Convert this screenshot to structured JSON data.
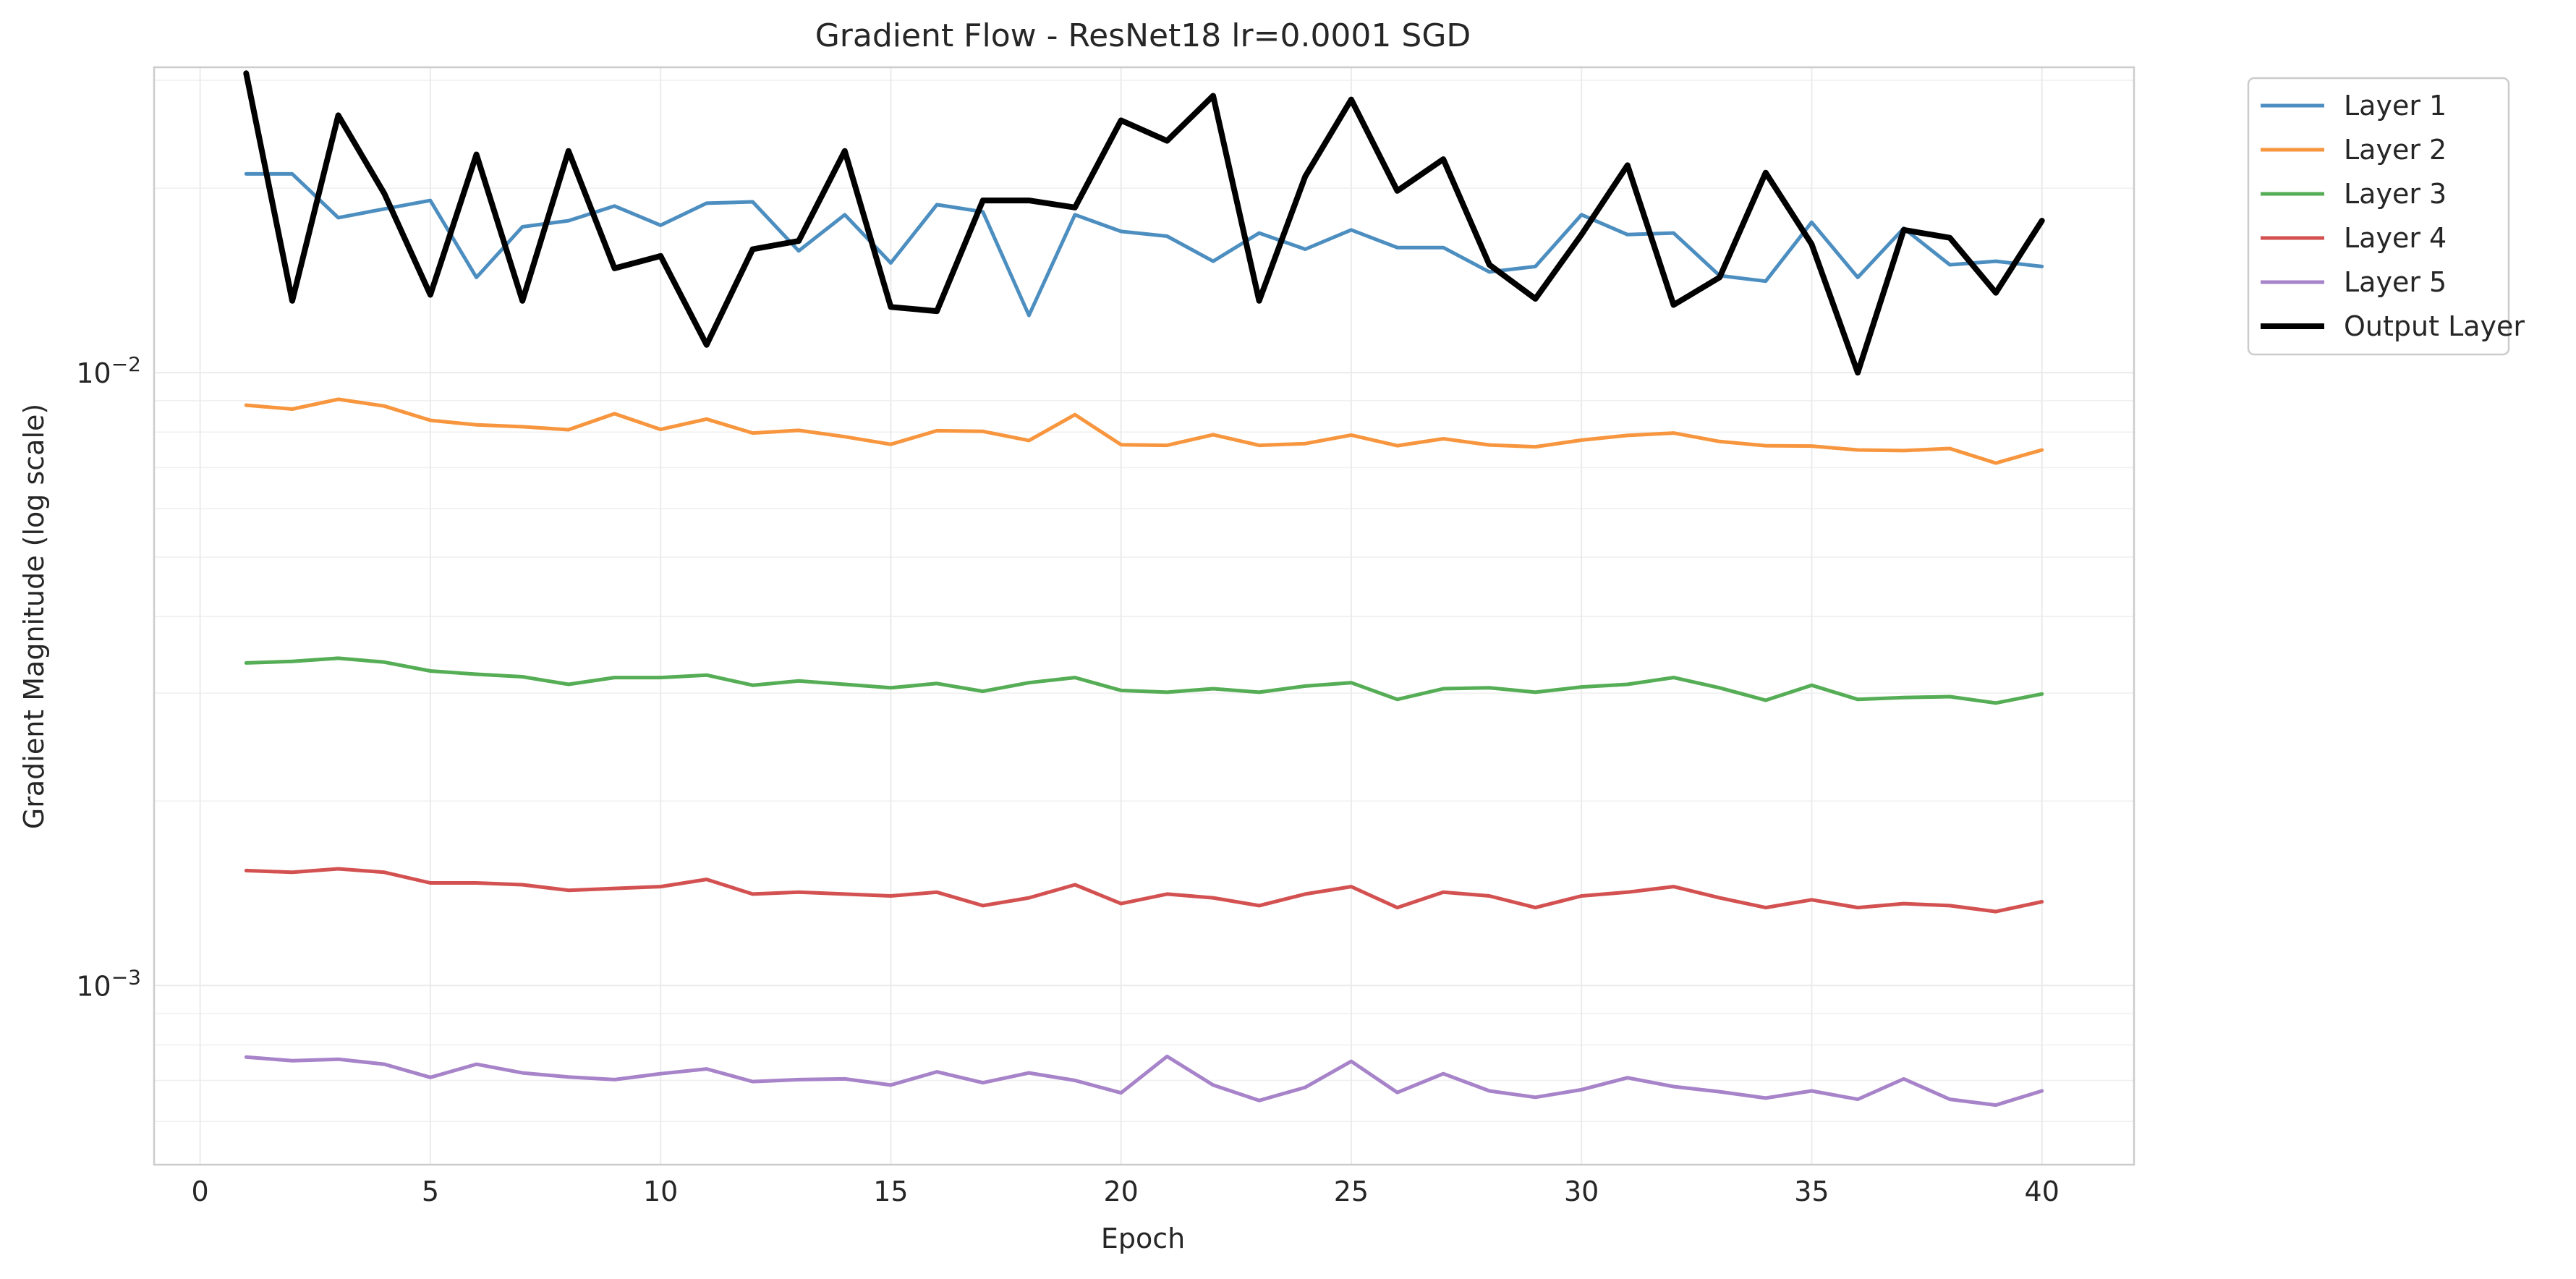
{
  "chart_data": {
    "type": "line",
    "title": "Gradient Flow - ResNet18 lr=0.0001 SGD",
    "xlabel": "Epoch",
    "ylabel": "Gradient Magnitude (log scale)",
    "y_scale": "log",
    "xlim": [
      -1,
      42
    ],
    "ylim": [
      0.00051,
      0.0315
    ],
    "x_ticks": [
      0,
      5,
      10,
      15,
      20,
      25,
      30,
      35,
      40
    ],
    "y_major_ticks": [
      {
        "value": 0.01,
        "base": "10",
        "exp": "−2"
      },
      {
        "value": 0.001,
        "base": "10",
        "exp": "−3"
      }
    ],
    "grid": true,
    "legend_position": "outside-top-right",
    "x": [
      1,
      2,
      3,
      4,
      5,
      6,
      7,
      8,
      9,
      10,
      11,
      12,
      13,
      14,
      15,
      16,
      17,
      18,
      19,
      20,
      21,
      22,
      23,
      24,
      25,
      26,
      27,
      28,
      29,
      30,
      31,
      32,
      33,
      34,
      35,
      36,
      37,
      38,
      39,
      40
    ],
    "series": [
      {
        "name": "Layer 1",
        "color": "#4c8ec0",
        "width": 5,
        "values": [
          0.0211,
          0.0211,
          0.0179,
          0.0185,
          0.0191,
          0.0143,
          0.0173,
          0.0177,
          0.0187,
          0.0174,
          0.0189,
          0.019,
          0.0158,
          0.0181,
          0.0151,
          0.0188,
          0.0183,
          0.0124,
          0.0181,
          0.017,
          0.0167,
          0.0152,
          0.0169,
          0.0159,
          0.0171,
          0.016,
          0.016,
          0.0146,
          0.0149,
          0.0181,
          0.0168,
          0.0169,
          0.0144,
          0.0141,
          0.0176,
          0.0143,
          0.0172,
          0.015,
          0.0152,
          0.0149
        ]
      },
      {
        "name": "Layer 2",
        "color": "#f7963e",
        "width": 5,
        "values": [
          0.00885,
          0.00872,
          0.00905,
          0.00882,
          0.00836,
          0.00822,
          0.00816,
          0.00807,
          0.00857,
          0.00808,
          0.0084,
          0.00797,
          0.00805,
          0.00786,
          0.00764,
          0.00804,
          0.00802,
          0.00775,
          0.00854,
          0.00763,
          0.00761,
          0.00792,
          0.00761,
          0.00766,
          0.00791,
          0.0076,
          0.0078,
          0.00762,
          0.00757,
          0.00776,
          0.0079,
          0.00797,
          0.00772,
          0.0076,
          0.00759,
          0.00748,
          0.00746,
          0.00752,
          0.00712,
          0.00748
        ]
      },
      {
        "name": "Layer 3",
        "color": "#55ad55",
        "width": 5,
        "values": [
          0.00336,
          0.00338,
          0.00342,
          0.00337,
          0.00326,
          0.00322,
          0.00319,
          0.0031,
          0.00318,
          0.00318,
          0.00321,
          0.00309,
          0.00314,
          0.0031,
          0.00306,
          0.00311,
          0.00302,
          0.00312,
          0.00318,
          0.00303,
          0.00301,
          0.00305,
          0.00301,
          0.00308,
          0.00312,
          0.00293,
          0.00305,
          0.00306,
          0.00301,
          0.00307,
          0.0031,
          0.00318,
          0.00306,
          0.00292,
          0.00309,
          0.00293,
          0.00295,
          0.00296,
          0.00289,
          0.00299
        ]
      },
      {
        "name": "Layer 4",
        "color": "#d35151",
        "width": 5,
        "values": [
          0.00154,
          0.00153,
          0.00155,
          0.00153,
          0.00147,
          0.00147,
          0.00146,
          0.00143,
          0.00144,
          0.00145,
          0.00149,
          0.00141,
          0.00142,
          0.00141,
          0.0014,
          0.00142,
          0.00135,
          0.00139,
          0.00146,
          0.00136,
          0.00141,
          0.00139,
          0.00135,
          0.00141,
          0.00145,
          0.00134,
          0.00142,
          0.0014,
          0.00134,
          0.0014,
          0.00142,
          0.00145,
          0.00139,
          0.00134,
          0.00138,
          0.00134,
          0.00136,
          0.00135,
          0.00132,
          0.00137
        ]
      },
      {
        "name": "Layer 5",
        "color": "#a783c9",
        "width": 5,
        "values": [
          0.000764,
          0.000754,
          0.000758,
          0.000744,
          0.000708,
          0.000744,
          0.00072,
          0.000709,
          0.000702,
          0.000718,
          0.000731,
          0.000697,
          0.000702,
          0.000704,
          0.000688,
          0.000723,
          0.000694,
          0.00072,
          0.0007,
          0.000668,
          0.000766,
          0.000688,
          0.000649,
          0.000682,
          0.000752,
          0.000669,
          0.000718,
          0.000673,
          0.000657,
          0.000676,
          0.000707,
          0.000684,
          0.000671,
          0.000655,
          0.000673,
          0.000652,
          0.000704,
          0.000652,
          0.000638,
          0.000673
        ]
      },
      {
        "name": "Output Layer",
        "color": "#000000",
        "width": 8,
        "values": [
          0.0308,
          0.0131,
          0.0263,
          0.0196,
          0.0134,
          0.0227,
          0.0131,
          0.023,
          0.0148,
          0.0155,
          0.0111,
          0.0159,
          0.0164,
          0.023,
          0.0128,
          0.0126,
          0.0191,
          0.0191,
          0.0186,
          0.0258,
          0.0239,
          0.0283,
          0.0131,
          0.0209,
          0.0279,
          0.0198,
          0.0223,
          0.015,
          0.0132,
          0.0168,
          0.0218,
          0.0129,
          0.0143,
          0.0212,
          0.0162,
          0.01,
          0.0171,
          0.0166,
          0.0135,
          0.0177
        ]
      }
    ]
  }
}
